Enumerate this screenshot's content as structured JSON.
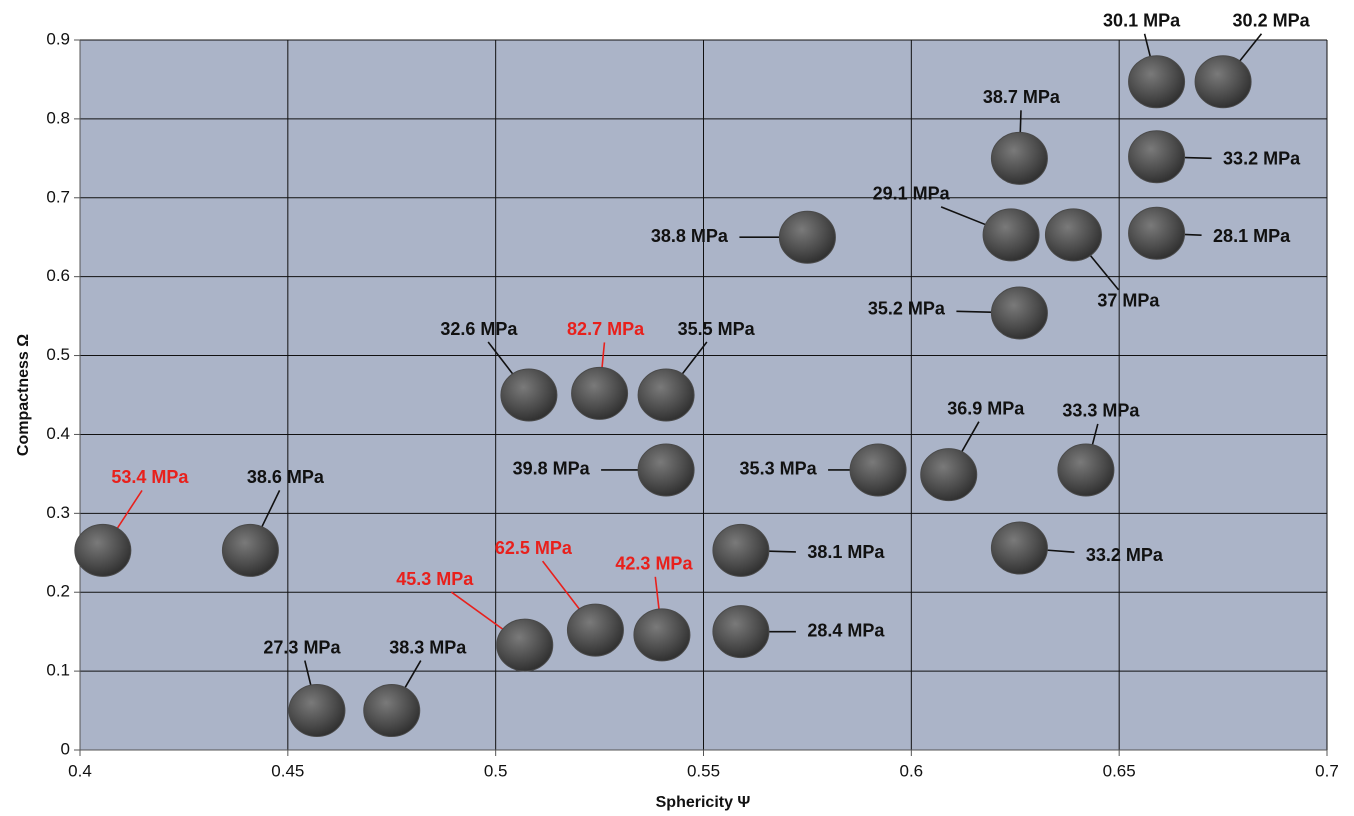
{
  "chart_data": {
    "type": "scatter",
    "x_label": "Sphericity Ψ",
    "y_label": "Compactness Ω",
    "xlim": [
      0.4,
      0.7
    ],
    "xticks": [
      0.4,
      0.45,
      0.5,
      0.55,
      0.6,
      0.65,
      0.7
    ],
    "ylim": [
      0,
      0.9
    ],
    "yticks": [
      0,
      0.1,
      0.2,
      0.3,
      0.4,
      0.5,
      0.6,
      0.7,
      0.8,
      0.9
    ],
    "grid": true,
    "background": "#abb4c8",
    "marker_color": "#4a4a4a",
    "series": [
      {
        "x": [
          0.659,
          0.675,
          0.626,
          0.659,
          0.624,
          0.639,
          0.659,
          0.575,
          0.626,
          0.508,
          0.525,
          0.541,
          0.541,
          0.592,
          0.609,
          0.642,
          0.4055,
          0.441,
          0.559,
          0.626,
          0.507,
          0.524,
          0.54,
          0.559,
          0.457,
          0.475
        ],
        "values": [
          0.847,
          0.847,
          0.75,
          0.752,
          0.653,
          0.653,
          0.655,
          0.65,
          0.554,
          0.45,
          0.452,
          0.45,
          0.355,
          0.355,
          0.349,
          0.355,
          0.253,
          0.253,
          0.253,
          0.256,
          0.133,
          0.152,
          0.146,
          0.15,
          0.05,
          0.05
        ],
        "labels": [
          "30.1 MPa",
          "30.2 MPa",
          "38.7 MPa",
          "33.2 MPa",
          "29.1 MPa",
          "37 MPa",
          "28.1 MPa",
          "38.8 MPa",
          "35.2 MPa",
          "32.6 MPa",
          "82.7 MPa",
          "35.5 MPa",
          "39.8 MPa",
          "35.3 MPa",
          "36.9 MPa",
          "33.3 MPa",
          "53.4 MPa",
          "38.6 MPa",
          "38.1 MPa",
          "33.2 MPa",
          "45.3 MPa",
          "62.5 MPa",
          "42.3 MPa",
          "28.4 MPa",
          "27.3 MPa",
          "38.3 MPa"
        ],
        "label_colors": [
          "#111111",
          "#111111",
          "#111111",
          "#111111",
          "#111111",
          "#111111",
          "#111111",
          "#111111",
          "#111111",
          "#111111",
          "#e8201c",
          "#111111",
          "#111111",
          "#111111",
          "#111111",
          "#111111",
          "#e8201c",
          "#111111",
          "#111111",
          "#111111",
          "#e8201c",
          "#e8201c",
          "#e8201c",
          "#111111",
          "#111111",
          "#111111"
        ]
      }
    ]
  }
}
